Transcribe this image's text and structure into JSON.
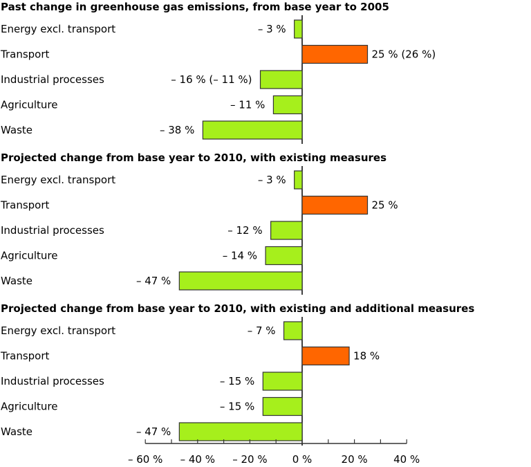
{
  "chart_data": {
    "type": "bar",
    "orientation": "horizontal",
    "xlim": [
      -60,
      40
    ],
    "x_ticks": [
      -60,
      -40,
      -20,
      0,
      20,
      40
    ],
    "x_tick_labels": [
      "– 60 %",
      "– 40 %",
      "– 20 %",
      "0 %",
      "20 %",
      "40 %"
    ],
    "minor_tick_step": 10,
    "grid": false,
    "legend": "none",
    "colors": {
      "negative": "#a6ef1c",
      "transport": "#ff6600",
      "outline": "#333333",
      "axis": "#000000"
    },
    "panels": [
      {
        "title": "Past change in greenhouse gas emissions, from base year to 2005",
        "categories": [
          "Energy excl. transport",
          "Transport",
          "Industrial processes",
          "Agriculture",
          "Waste"
        ],
        "values": [
          -3,
          25,
          -16,
          -11,
          -38
        ],
        "value_labels": [
          "– 3 %",
          "25 % (26 %)",
          "– 16 % (– 11 %)",
          "– 11 %",
          "– 38 %"
        ]
      },
      {
        "title": "Projected change from base year to 2010, with existing measures",
        "categories": [
          "Energy excl. transport",
          "Transport",
          "Industrial processes",
          "Agriculture",
          "Waste"
        ],
        "values": [
          -3,
          25,
          -12,
          -14,
          -47
        ],
        "value_labels": [
          "– 3 %",
          "25 %",
          "– 12 %",
          "– 14 %",
          "– 47 %"
        ]
      },
      {
        "title": "Projected change from base year to 2010, with existing and additional measures",
        "categories": [
          "Energy excl. transport",
          "Transport",
          "Industrial processes",
          "Agriculture",
          "Waste"
        ],
        "values": [
          -7,
          18,
          -15,
          -15,
          -47
        ],
        "value_labels": [
          "– 7 %",
          "18 %",
          "– 15 %",
          "– 15 %",
          "– 47 %"
        ]
      }
    ]
  }
}
